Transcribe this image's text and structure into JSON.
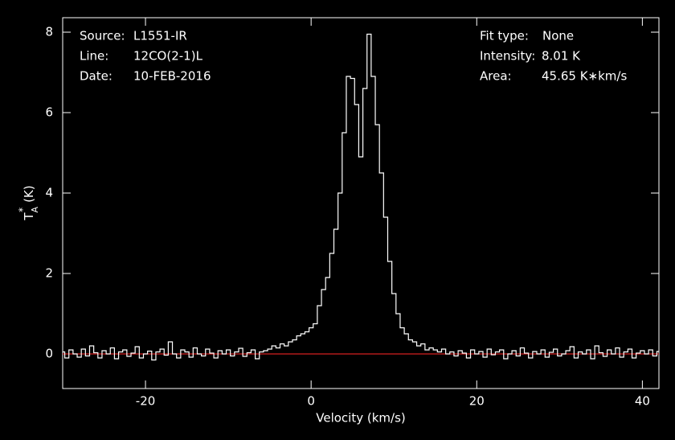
{
  "chart_data": {
    "type": "step",
    "xlabel": "Velocity (km/s)",
    "ylabel": {
      "base": "T",
      "sup": "*",
      "sub": "A",
      "unit": "(K)"
    },
    "info_left": [
      [
        "Source:",
        "L1551-IR"
      ],
      [
        "Line:",
        "12CO(2-1)L"
      ],
      [
        "Date:",
        "10-FEB-2016"
      ]
    ],
    "info_right": [
      [
        "Fit type:",
        "None"
      ],
      [
        "Intensity:",
        "8.01 K"
      ],
      [
        "Area:",
        "45.65 K∗km/s"
      ]
    ],
    "xlim": [
      -30,
      42
    ],
    "ylim": [
      -0.86,
      8.36
    ],
    "xticks": [
      -20,
      0,
      20,
      40
    ],
    "yticks": [
      0,
      2,
      4,
      6,
      8
    ],
    "baseline": {
      "value": 0,
      "color": "#d42020"
    },
    "x": [
      -30,
      -29.5,
      -29,
      -28.5,
      -28,
      -27.5,
      -27,
      -26.5,
      -26,
      -25.5,
      -25,
      -24.5,
      -24,
      -23.5,
      -23,
      -22.5,
      -22,
      -21.5,
      -21,
      -20.5,
      -20,
      -19.5,
      -19,
      -18.5,
      -18,
      -17.5,
      -17,
      -16.5,
      -16,
      -15.5,
      -15,
      -14.5,
      -14,
      -13.5,
      -13,
      -12.5,
      -12,
      -11.5,
      -11,
      -10.5,
      -10,
      -9.5,
      -9,
      -8.5,
      -8,
      -7.5,
      -7,
      -6.5,
      -6,
      -5.5,
      -5,
      -4.5,
      -4,
      -3.5,
      -3,
      -2.5,
      -2,
      -1.5,
      -1,
      -0.5,
      0,
      0.5,
      1,
      1.5,
      2,
      2.5,
      3,
      3.5,
      4,
      4.5,
      5,
      5.5,
      6,
      6.5,
      7,
      7.5,
      8,
      8.5,
      9,
      9.5,
      10,
      10.5,
      11,
      11.5,
      12,
      12.5,
      13,
      13.5,
      14,
      14.5,
      15,
      15.5,
      16,
      16.5,
      17,
      17.5,
      18,
      18.5,
      19,
      19.5,
      20,
      20.5,
      21,
      21.5,
      22,
      22.5,
      23,
      23.5,
      24,
      24.5,
      25,
      25.5,
      26,
      26.5,
      27,
      27.5,
      28,
      28.5,
      29,
      29.5,
      30,
      30.5,
      31,
      31.5,
      32,
      32.5,
      33,
      33.5,
      34,
      34.5,
      35,
      35.5,
      36,
      36.5,
      37,
      37.5,
      38,
      38.5,
      39,
      39.5,
      40,
      40.5,
      41,
      41.5,
      42
    ],
    "series": [
      {
        "color": "#ffffff",
        "values": [
          0.05,
          -0.1,
          0.1,
          0.0,
          -0.08,
          0.12,
          -0.05,
          0.2,
          0.03,
          -0.1,
          0.08,
          0.0,
          0.15,
          -0.12,
          0.05,
          0.1,
          -0.06,
          0.02,
          0.18,
          -0.1,
          0.0,
          0.07,
          -0.15,
          0.05,
          0.12,
          -0.03,
          0.3,
          0.0,
          -0.1,
          0.1,
          0.05,
          -0.08,
          0.15,
          0.0,
          -0.05,
          0.12,
          0.02,
          -0.1,
          0.08,
          0.0,
          0.1,
          -0.05,
          0.05,
          0.14,
          -0.06,
          0.03,
          0.1,
          -0.12,
          0.05,
          0.08,
          0.12,
          0.2,
          0.15,
          0.25,
          0.2,
          0.3,
          0.35,
          0.45,
          0.5,
          0.55,
          0.65,
          0.75,
          1.2,
          1.6,
          1.9,
          2.5,
          3.1,
          4.0,
          5.5,
          6.9,
          6.85,
          6.2,
          4.9,
          6.6,
          7.95,
          6.9,
          5.7,
          4.5,
          3.4,
          2.3,
          1.5,
          1.0,
          0.65,
          0.5,
          0.35,
          0.3,
          0.2,
          0.25,
          0.1,
          0.15,
          0.1,
          0.05,
          0.12,
          0.0,
          0.05,
          -0.05,
          0.08,
          0.02,
          -0.1,
          0.1,
          0.0,
          0.06,
          -0.08,
          0.12,
          -0.02,
          0.05,
          0.1,
          -0.12,
          0.0,
          0.08,
          -0.05,
          0.15,
          0.02,
          -0.1,
          0.06,
          0.0,
          0.1,
          -0.08,
          0.04,
          0.12,
          -0.05,
          0.0,
          0.08,
          0.18,
          -0.1,
          0.05,
          0.0,
          0.1,
          -0.12,
          0.2,
          0.03,
          -0.06,
          0.1,
          0.0,
          0.15,
          -0.08,
          0.05,
          0.12,
          -0.1,
          0.02,
          0.08,
          0.0,
          0.1,
          -0.05,
          0.06
        ]
      }
    ]
  }
}
